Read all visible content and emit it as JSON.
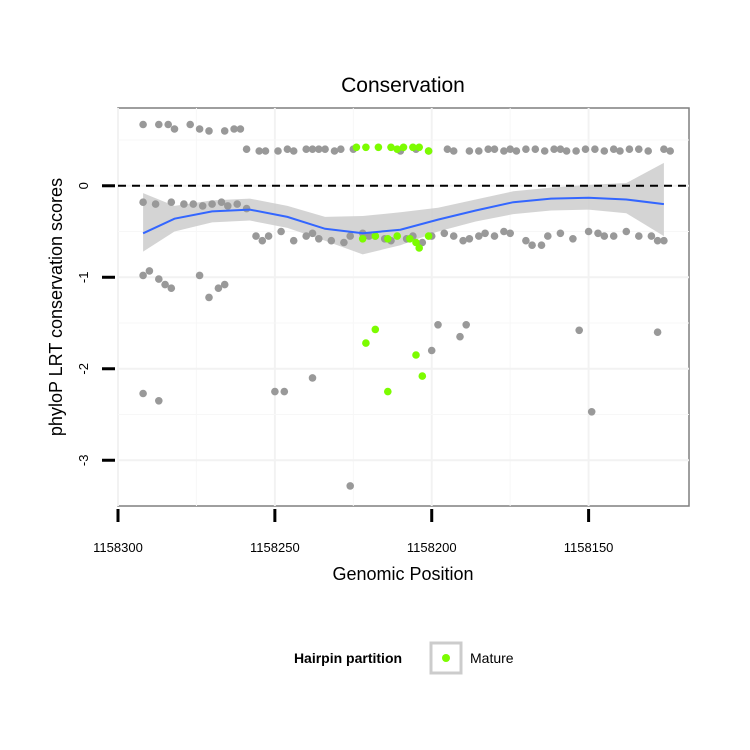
{
  "chart_data": {
    "type": "scatter",
    "title": "Conservation",
    "xlabel": "Genomic Position",
    "ylabel": "phyloP LRT conservation scores",
    "x_reversed": true,
    "xlim": [
      1158300,
      1158118
    ],
    "ylim": [
      -3.5,
      0.85
    ],
    "x_ticks": [
      1158300,
      1158250,
      1158200,
      1158150
    ],
    "x_tick_labels": [
      "1158300",
      "1158250",
      "1158200",
      "1158150"
    ],
    "y_ticks": [
      -3,
      -2,
      -1,
      0
    ],
    "y_tick_labels": [
      "-3",
      "-2",
      "-1",
      "0"
    ],
    "grid": true,
    "reference_line": {
      "y": 0,
      "style": "dashed"
    },
    "legend": {
      "title": "Hairpin partition",
      "position": "bottom",
      "entries": [
        {
          "label": "Mature",
          "color": "#7CFC00"
        }
      ]
    },
    "colors": {
      "other": "#999999",
      "mature": "#7CFC00",
      "smooth": "#3366FF",
      "ribbon": "#CCCCCC"
    },
    "series": [
      {
        "group": "other",
        "points": [
          [
            1158292,
            0.67
          ],
          [
            1158287,
            0.67
          ],
          [
            1158284,
            0.67
          ],
          [
            1158282,
            0.62
          ],
          [
            1158277,
            0.67
          ],
          [
            1158274,
            0.62
          ],
          [
            1158271,
            0.6
          ],
          [
            1158266,
            0.6
          ],
          [
            1158263,
            0.62
          ],
          [
            1158261,
            0.62
          ],
          [
            1158259,
            0.4
          ],
          [
            1158255,
            0.38
          ],
          [
            1158253,
            0.38
          ],
          [
            1158249,
            0.38
          ],
          [
            1158246,
            0.4
          ],
          [
            1158244,
            0.38
          ],
          [
            1158240,
            0.4
          ],
          [
            1158238,
            0.4
          ],
          [
            1158236,
            0.4
          ],
          [
            1158234,
            0.4
          ],
          [
            1158231,
            0.38
          ],
          [
            1158229,
            0.4
          ],
          [
            1158225,
            0.4
          ],
          [
            1158210,
            0.38
          ],
          [
            1158205,
            0.4
          ],
          [
            1158201,
            0.38
          ],
          [
            1158195,
            0.4
          ],
          [
            1158193,
            0.38
          ],
          [
            1158188,
            0.38
          ],
          [
            1158185,
            0.38
          ],
          [
            1158182,
            0.4
          ],
          [
            1158180,
            0.4
          ],
          [
            1158177,
            0.38
          ],
          [
            1158175,
            0.4
          ],
          [
            1158173,
            0.38
          ],
          [
            1158170,
            0.4
          ],
          [
            1158167,
            0.4
          ],
          [
            1158164,
            0.38
          ],
          [
            1158161,
            0.4
          ],
          [
            1158159,
            0.4
          ],
          [
            1158157,
            0.38
          ],
          [
            1158154,
            0.38
          ],
          [
            1158151,
            0.4
          ],
          [
            1158148,
            0.4
          ],
          [
            1158145,
            0.38
          ],
          [
            1158142,
            0.4
          ],
          [
            1158140,
            0.38
          ],
          [
            1158137,
            0.4
          ],
          [
            1158134,
            0.4
          ],
          [
            1158131,
            0.38
          ],
          [
            1158126,
            0.4
          ],
          [
            1158124,
            0.38
          ],
          [
            1158292,
            -0.18
          ],
          [
            1158288,
            -0.2
          ],
          [
            1158283,
            -0.18
          ],
          [
            1158279,
            -0.2
          ],
          [
            1158276,
            -0.2
          ],
          [
            1158273,
            -0.22
          ],
          [
            1158270,
            -0.2
          ],
          [
            1158267,
            -0.18
          ],
          [
            1158265,
            -0.22
          ],
          [
            1158262,
            -0.2
          ],
          [
            1158259,
            -0.25
          ],
          [
            1158256,
            -0.55
          ],
          [
            1158254,
            -0.6
          ],
          [
            1158252,
            -0.55
          ],
          [
            1158248,
            -0.5
          ],
          [
            1158244,
            -0.6
          ],
          [
            1158240,
            -0.55
          ],
          [
            1158238,
            -0.52
          ],
          [
            1158236,
            -0.58
          ],
          [
            1158232,
            -0.6
          ],
          [
            1158228,
            -0.62
          ],
          [
            1158226,
            -0.55
          ],
          [
            1158222,
            -0.52
          ],
          [
            1158220,
            -0.55
          ],
          [
            1158218,
            -0.55
          ],
          [
            1158215,
            -0.58
          ],
          [
            1158213,
            -0.6
          ],
          [
            1158208,
            -0.58
          ],
          [
            1158206,
            -0.55
          ],
          [
            1158203,
            -0.62
          ],
          [
            1158200,
            -0.55
          ],
          [
            1158196,
            -0.52
          ],
          [
            1158193,
            -0.55
          ],
          [
            1158190,
            -0.6
          ],
          [
            1158188,
            -0.58
          ],
          [
            1158185,
            -0.55
          ],
          [
            1158183,
            -0.52
          ],
          [
            1158180,
            -0.55
          ],
          [
            1158177,
            -0.5
          ],
          [
            1158175,
            -0.52
          ],
          [
            1158170,
            -0.6
          ],
          [
            1158168,
            -0.65
          ],
          [
            1158165,
            -0.65
          ],
          [
            1158163,
            -0.55
          ],
          [
            1158159,
            -0.52
          ],
          [
            1158155,
            -0.58
          ],
          [
            1158150,
            -0.5
          ],
          [
            1158147,
            -0.52
          ],
          [
            1158145,
            -0.55
          ],
          [
            1158142,
            -0.55
          ],
          [
            1158138,
            -0.5
          ],
          [
            1158134,
            -0.55
          ],
          [
            1158130,
            -0.55
          ],
          [
            1158128,
            -0.6
          ],
          [
            1158126,
            -0.6
          ],
          [
            1158292,
            -0.98
          ],
          [
            1158290,
            -0.93
          ],
          [
            1158287,
            -1.02
          ],
          [
            1158285,
            -1.08
          ],
          [
            1158283,
            -1.12
          ],
          [
            1158274,
            -0.98
          ],
          [
            1158271,
            -1.22
          ],
          [
            1158266,
            -1.08
          ],
          [
            1158268,
            -1.12
          ],
          [
            1158292,
            -2.27
          ],
          [
            1158287,
            -2.35
          ],
          [
            1158250,
            -2.25
          ],
          [
            1158247,
            -2.25
          ],
          [
            1158238,
            -2.1
          ],
          [
            1158226,
            -3.28
          ],
          [
            1158200,
            -1.8
          ],
          [
            1158198,
            -1.52
          ],
          [
            1158191,
            -1.65
          ],
          [
            1158189,
            -1.52
          ],
          [
            1158153,
            -1.58
          ],
          [
            1158149,
            -2.47
          ],
          [
            1158128,
            -1.6
          ]
        ]
      },
      {
        "group": "mature",
        "name": "Mature",
        "points": [
          [
            1158224,
            0.42
          ],
          [
            1158221,
            0.42
          ],
          [
            1158217,
            0.42
          ],
          [
            1158213,
            0.42
          ],
          [
            1158211,
            0.4
          ],
          [
            1158209,
            0.42
          ],
          [
            1158206,
            0.42
          ],
          [
            1158204,
            0.42
          ],
          [
            1158201,
            0.38
          ],
          [
            1158222,
            -0.58
          ],
          [
            1158218,
            -0.55
          ],
          [
            1158214,
            -0.58
          ],
          [
            1158211,
            -0.55
          ],
          [
            1158207,
            -0.58
          ],
          [
            1158205,
            -0.62
          ],
          [
            1158204,
            -0.68
          ],
          [
            1158201,
            -0.55
          ],
          [
            1158218,
            -1.57
          ],
          [
            1158221,
            -1.72
          ],
          [
            1158214,
            -2.25
          ],
          [
            1158205,
            -1.85
          ],
          [
            1158203,
            -2.08
          ]
        ]
      }
    ],
    "smooth": {
      "x": [
        1158292,
        1158282,
        1158270,
        1158258,
        1158246,
        1158234,
        1158222,
        1158210,
        1158198,
        1158186,
        1158174,
        1158162,
        1158150,
        1158138,
        1158126
      ],
      "y": [
        -0.52,
        -0.36,
        -0.28,
        -0.26,
        -0.34,
        -0.47,
        -0.52,
        -0.48,
        -0.37,
        -0.27,
        -0.18,
        -0.14,
        -0.13,
        -0.15,
        -0.2
      ],
      "ymin": [
        -0.72,
        -0.5,
        -0.4,
        -0.38,
        -0.46,
        -0.6,
        -0.75,
        -0.65,
        -0.5,
        -0.39,
        -0.31,
        -0.27,
        -0.26,
        -0.3,
        -0.55
      ],
      "ymax": [
        -0.08,
        -0.22,
        -0.16,
        -0.14,
        -0.22,
        -0.34,
        -0.33,
        -0.29,
        -0.24,
        -0.15,
        -0.06,
        -0.02,
        0.01,
        0.03,
        0.25
      ]
    }
  }
}
